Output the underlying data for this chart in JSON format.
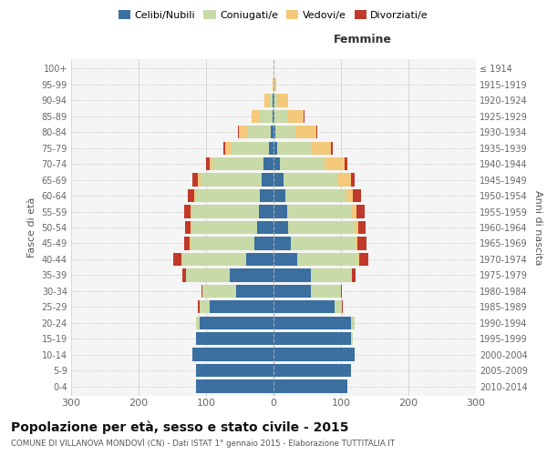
{
  "age_groups": [
    "0-4",
    "5-9",
    "10-14",
    "15-19",
    "20-24",
    "25-29",
    "30-34",
    "35-39",
    "40-44",
    "45-49",
    "50-54",
    "55-59",
    "60-64",
    "65-69",
    "70-74",
    "75-79",
    "80-84",
    "85-89",
    "90-94",
    "95-99",
    "100+"
  ],
  "birth_years": [
    "2010-2014",
    "2005-2009",
    "2000-2004",
    "1995-1999",
    "1990-1994",
    "1985-1989",
    "1980-1984",
    "1975-1979",
    "1970-1974",
    "1965-1969",
    "1960-1964",
    "1955-1959",
    "1950-1954",
    "1945-1949",
    "1940-1944",
    "1935-1939",
    "1930-1934",
    "1925-1929",
    "1920-1924",
    "1915-1919",
    "≤ 1914"
  ],
  "maschi": {
    "celibi": [
      115,
      115,
      120,
      115,
      110,
      95,
      55,
      65,
      40,
      28,
      24,
      21,
      20,
      18,
      15,
      7,
      4,
      2,
      1,
      0,
      0
    ],
    "coniugati": [
      0,
      0,
      0,
      0,
      5,
      15,
      50,
      65,
      95,
      95,
      98,
      100,
      95,
      90,
      75,
      55,
      35,
      18,
      4,
      0,
      0
    ],
    "vedovi": [
      0,
      0,
      0,
      0,
      0,
      0,
      0,
      0,
      1,
      1,
      1,
      2,
      2,
      4,
      5,
      10,
      12,
      12,
      8,
      2,
      0
    ],
    "divorziati": [
      0,
      0,
      0,
      0,
      0,
      2,
      2,
      5,
      12,
      8,
      8,
      10,
      10,
      8,
      5,
      3,
      2,
      0,
      0,
      0,
      0
    ]
  },
  "femmine": {
    "nubili": [
      110,
      115,
      120,
      115,
      115,
      90,
      55,
      55,
      35,
      26,
      22,
      20,
      18,
      15,
      10,
      5,
      3,
      2,
      1,
      0,
      0
    ],
    "coniugate": [
      0,
      0,
      0,
      2,
      5,
      12,
      45,
      60,
      90,
      95,
      98,
      95,
      90,
      80,
      65,
      50,
      30,
      18,
      5,
      1,
      0
    ],
    "vedove": [
      0,
      0,
      0,
      0,
      0,
      0,
      0,
      1,
      2,
      3,
      5,
      8,
      10,
      20,
      30,
      30,
      30,
      25,
      15,
      3,
      0
    ],
    "divorziate": [
      0,
      0,
      0,
      0,
      0,
      1,
      2,
      5,
      14,
      14,
      12,
      12,
      12,
      5,
      5,
      3,
      2,
      1,
      0,
      0,
      0
    ]
  },
  "colors": {
    "celibi": "#3a6fa0",
    "coniugati": "#c8daa8",
    "vedovi": "#f5c97a",
    "divorziati": "#c0392b"
  },
  "xlim": 300,
  "title": "Popolazione per età, sesso e stato civile - 2015",
  "subtitle": "COMUNE DI VILLANOVA MONDOVÌ (CN) - Dati ISTAT 1° gennaio 2015 - Elaborazione TUTTITALIA.IT",
  "ylabel_left": "Fasce di età",
  "ylabel_right": "Anni di nascita"
}
